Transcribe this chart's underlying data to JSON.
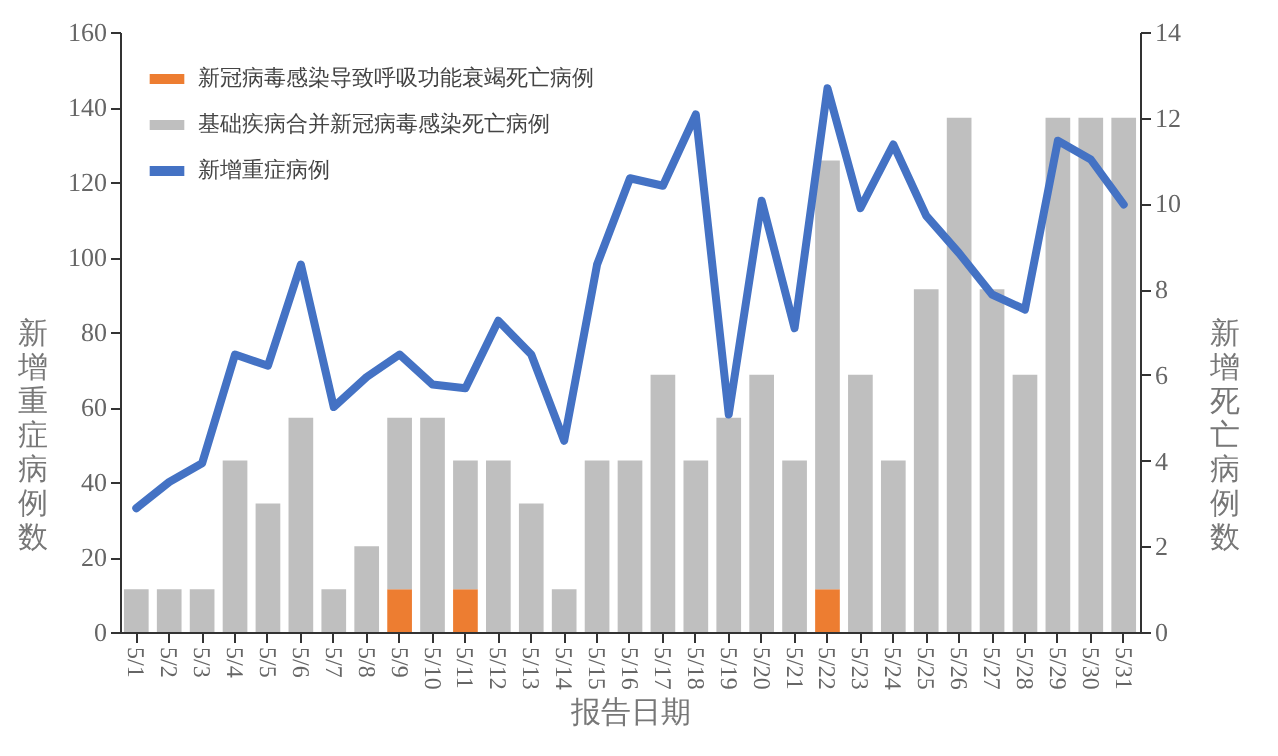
{
  "chart_data": {
    "type": "bar",
    "xlabel": "报告日期",
    "ylabel": "新增重症病例数",
    "y2label": "新增死亡病例数",
    "categories": [
      "5/1",
      "5/2",
      "5/3",
      "5/4",
      "5/5",
      "5/6",
      "5/7",
      "5/8",
      "5/9",
      "5/10",
      "5/11",
      "5/12",
      "5/13",
      "5/14",
      "5/15",
      "5/16",
      "5/17",
      "5/18",
      "5/19",
      "5/20",
      "5/21",
      "5/22",
      "5/23",
      "5/24",
      "5/25",
      "5/26",
      "5/27",
      "5/28",
      "5/29",
      "5/30",
      "5/31"
    ],
    "stacked": true,
    "legend": "top left",
    "grid": false,
    "ylim": [
      0,
      160
    ],
    "yticks": [
      0,
      20,
      40,
      60,
      80,
      100,
      120,
      140,
      160
    ],
    "y2lim": [
      0,
      14
    ],
    "y2ticks": [
      0,
      2,
      4,
      6,
      8,
      10,
      12,
      14
    ],
    "series": [
      {
        "name": "新冠病毒感染导致呼吸功能衰竭死亡病例",
        "type": "bar",
        "axis": "y2",
        "color": "#ed7d31",
        "values": [
          null,
          null,
          null,
          null,
          null,
          null,
          null,
          null,
          1,
          null,
          1,
          null,
          null,
          null,
          null,
          null,
          null,
          null,
          null,
          null,
          null,
          1,
          null,
          null,
          null,
          null,
          null,
          null,
          null,
          null,
          null
        ]
      },
      {
        "name": "基础疾病合并新冠病毒感染死亡病例",
        "type": "bar",
        "axis": "y2",
        "color": "#bfbfbf",
        "values": [
          1,
          1,
          1,
          4,
          3,
          5,
          1,
          2,
          4,
          5,
          3,
          4,
          3,
          1,
          4,
          4,
          6,
          4,
          5,
          6,
          4,
          10,
          6,
          4,
          8,
          12,
          8,
          6,
          12,
          12,
          12
        ]
      },
      {
        "name": "新增重症病例",
        "type": "line",
        "axis": "y",
        "color": "#4472c4",
        "values": [
          33,
          40,
          45,
          74,
          71,
          98,
          60,
          68,
          74,
          66,
          65,
          83,
          74,
          51,
          98,
          121,
          119,
          138,
          58,
          115,
          81,
          145,
          113,
          130,
          111,
          101,
          90,
          86,
          131,
          126,
          114
        ]
      }
    ]
  }
}
